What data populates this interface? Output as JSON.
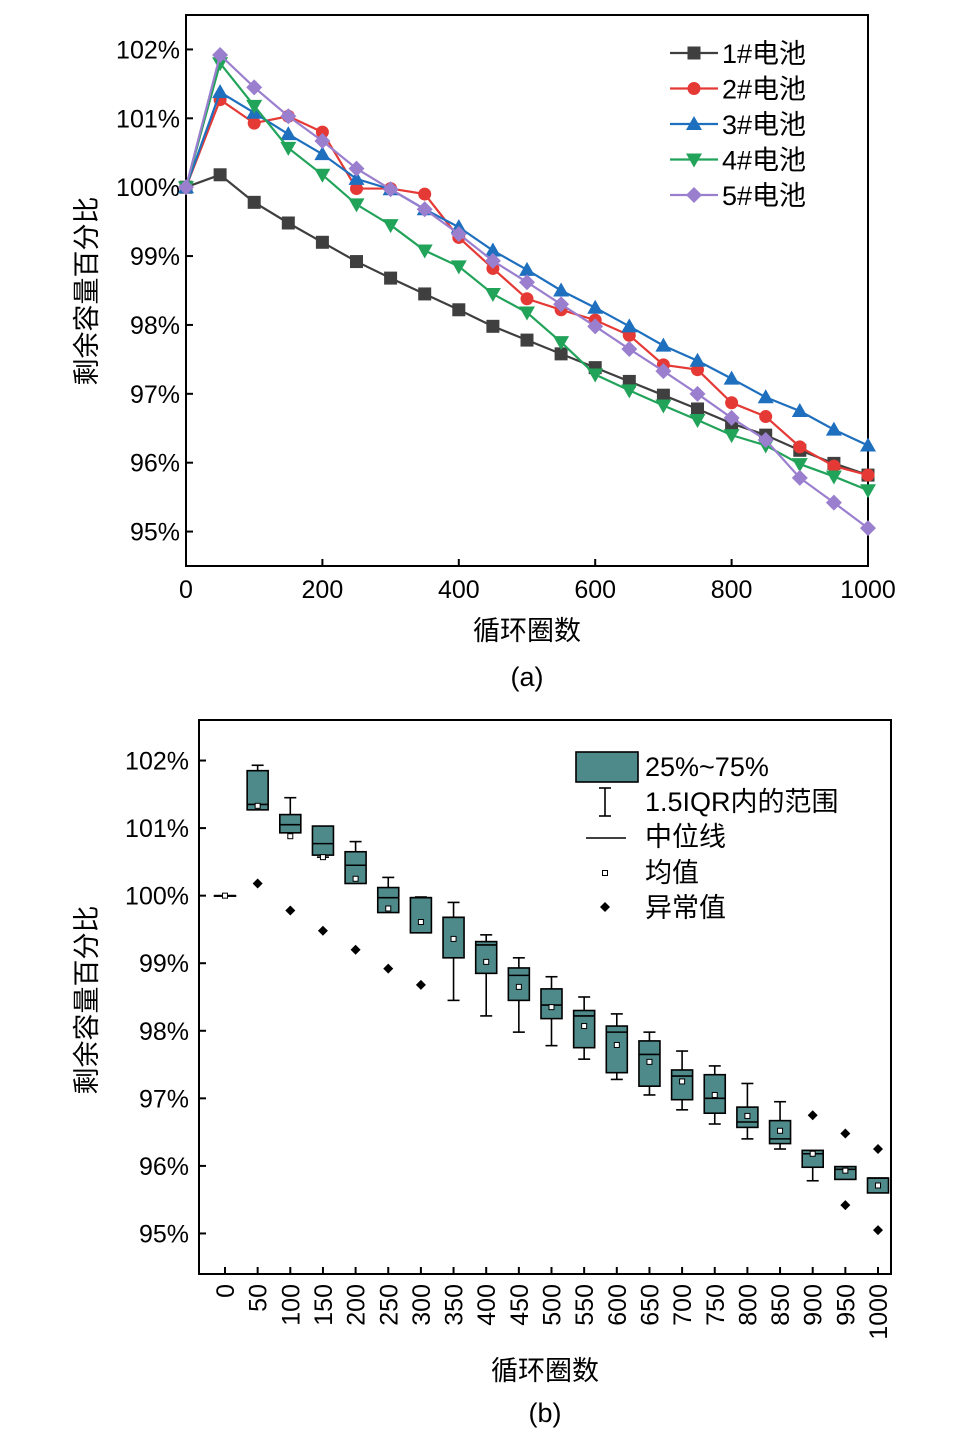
{
  "chart_data": [
    {
      "type": "line",
      "caption": "(a)",
      "xlabel": "循环圈数",
      "ylabel": "剩余容量百分比",
      "xlim": [
        0,
        1000
      ],
      "ylim": [
        94.5,
        102.5
      ],
      "xticks": [
        "0",
        "200",
        "400",
        "600",
        "800",
        "1000"
      ],
      "yticks": [
        "95%",
        "96%",
        "97%",
        "98%",
        "99%",
        "100%",
        "101%",
        "102%"
      ],
      "x": [
        0,
        50,
        100,
        150,
        200,
        250,
        300,
        350,
        400,
        450,
        500,
        550,
        600,
        650,
        700,
        750,
        800,
        850,
        900,
        950,
        1000
      ],
      "legend_position": "top-right",
      "series": [
        {
          "name": "1#电池",
          "color": "#3f3f3f",
          "marker": "square",
          "values": [
            100.0,
            100.18,
            99.78,
            99.48,
            99.2,
            98.92,
            98.68,
            98.45,
            98.22,
            97.98,
            97.78,
            97.58,
            97.38,
            97.18,
            96.98,
            96.78,
            96.57,
            96.4,
            96.18,
            95.99,
            95.82
          ]
        },
        {
          "name": "2#电池",
          "color": "#e53935",
          "marker": "circle",
          "values": [
            100.0,
            101.27,
            100.93,
            101.03,
            100.8,
            99.98,
            99.98,
            99.9,
            99.27,
            98.82,
            98.38,
            98.22,
            98.07,
            97.85,
            97.42,
            97.35,
            96.87,
            96.67,
            96.23,
            95.95,
            95.82
          ]
        },
        {
          "name": "3#电池",
          "color": "#1f6fbf",
          "marker": "triangle-up",
          "values": [
            100.0,
            101.38,
            101.08,
            100.77,
            100.48,
            100.12,
            99.97,
            99.68,
            99.42,
            99.08,
            98.8,
            98.5,
            98.25,
            97.98,
            97.7,
            97.48,
            97.22,
            96.95,
            96.75,
            96.48,
            96.25
          ]
        },
        {
          "name": "4#电池",
          "color": "#22a35a",
          "marker": "triangle-down",
          "values": [
            100.0,
            101.8,
            101.18,
            100.57,
            100.18,
            99.75,
            99.45,
            99.08,
            98.85,
            98.45,
            98.18,
            97.75,
            97.28,
            97.05,
            96.83,
            96.62,
            96.4,
            96.25,
            95.98,
            95.8,
            95.6
          ]
        },
        {
          "name": "5#电池",
          "color": "#9b7fcf",
          "marker": "diamond",
          "values": [
            100.0,
            101.92,
            101.45,
            101.03,
            100.67,
            100.27,
            99.97,
            99.68,
            99.32,
            98.93,
            98.62,
            98.3,
            97.98,
            97.65,
            97.33,
            97.0,
            96.65,
            96.33,
            95.78,
            95.42,
            95.05
          ]
        }
      ]
    },
    {
      "type": "box",
      "caption": "(b)",
      "xlabel": "循环圈数",
      "ylabel": "剩余容量百分比",
      "ylim": [
        94.4,
        102.6
      ],
      "yticks": [
        "95%",
        "96%",
        "97%",
        "98%",
        "99%",
        "100%",
        "101%",
        "102%"
      ],
      "categories": [
        "0",
        "50",
        "100",
        "150",
        "200",
        "250",
        "300",
        "350",
        "400",
        "450",
        "500",
        "550",
        "600",
        "650",
        "700",
        "750",
        "800",
        "850",
        "900",
        "950",
        "1000"
      ],
      "box_color": "#4f8a8b",
      "legend_position": "top-right",
      "legend": [
        "25%~75%",
        "1.5IQR内的范围",
        "中位线",
        "均值",
        "异常值"
      ],
      "boxes": [
        {
          "q1": 100.0,
          "q3": 100.0,
          "median": 100.0,
          "mean": 100.0,
          "whisker_low": 100.0,
          "whisker_high": 100.0,
          "outliers": []
        },
        {
          "q1": 101.27,
          "q3": 101.85,
          "median": 101.35,
          "mean": 101.33,
          "whisker_low": 101.27,
          "whisker_high": 101.93,
          "outliers": [
            100.18
          ]
        },
        {
          "q1": 100.93,
          "q3": 101.2,
          "median": 101.05,
          "mean": 100.88,
          "whisker_low": 100.93,
          "whisker_high": 101.45,
          "outliers": [
            99.78
          ]
        },
        {
          "q1": 100.6,
          "q3": 101.03,
          "median": 100.77,
          "mean": 100.57,
          "whisker_low": 100.57,
          "whisker_high": 101.03,
          "outliers": [
            99.48
          ]
        },
        {
          "q1": 100.18,
          "q3": 100.65,
          "median": 100.45,
          "mean": 100.25,
          "whisker_low": 100.18,
          "whisker_high": 100.8,
          "outliers": [
            99.2
          ]
        },
        {
          "q1": 99.75,
          "q3": 100.12,
          "median": 99.97,
          "mean": 99.81,
          "whisker_low": 99.75,
          "whisker_high": 100.27,
          "outliers": [
            98.92
          ]
        },
        {
          "q1": 99.45,
          "q3": 99.97,
          "median": 99.97,
          "mean": 99.61,
          "whisker_low": 99.45,
          "whisker_high": 99.98,
          "outliers": [
            98.68
          ]
        },
        {
          "q1": 99.08,
          "q3": 99.68,
          "median": 99.68,
          "mean": 99.36,
          "whisker_low": 98.45,
          "whisker_high": 99.9,
          "outliers": []
        },
        {
          "q1": 98.85,
          "q3": 99.32,
          "median": 99.27,
          "mean": 99.02,
          "whisker_low": 98.22,
          "whisker_high": 99.42,
          "outliers": []
        },
        {
          "q1": 98.45,
          "q3": 98.93,
          "median": 98.82,
          "mean": 98.65,
          "whisker_low": 97.98,
          "whisker_high": 99.08,
          "outliers": []
        },
        {
          "q1": 98.18,
          "q3": 98.62,
          "median": 98.38,
          "mean": 98.35,
          "whisker_low": 97.78,
          "whisker_high": 98.8,
          "outliers": []
        },
        {
          "q1": 97.75,
          "q3": 98.3,
          "median": 98.22,
          "mean": 98.07,
          "whisker_low": 97.58,
          "whisker_high": 98.5,
          "outliers": []
        },
        {
          "q1": 97.38,
          "q3": 98.07,
          "median": 97.98,
          "mean": 97.79,
          "whisker_low": 97.28,
          "whisker_high": 98.25,
          "outliers": []
        },
        {
          "q1": 97.18,
          "q3": 97.85,
          "median": 97.65,
          "mean": 97.54,
          "whisker_low": 97.05,
          "whisker_high": 97.98,
          "outliers": []
        },
        {
          "q1": 96.98,
          "q3": 97.42,
          "median": 97.33,
          "mean": 97.25,
          "whisker_low": 96.83,
          "whisker_high": 97.7,
          "outliers": []
        },
        {
          "q1": 96.78,
          "q3": 97.35,
          "median": 97.0,
          "mean": 97.05,
          "whisker_low": 96.62,
          "whisker_high": 97.48,
          "outliers": []
        },
        {
          "q1": 96.57,
          "q3": 96.87,
          "median": 96.65,
          "mean": 96.74,
          "whisker_low": 96.4,
          "whisker_high": 97.22,
          "outliers": []
        },
        {
          "q1": 96.33,
          "q3": 96.67,
          "median": 96.4,
          "mean": 96.52,
          "whisker_low": 96.25,
          "whisker_high": 96.95,
          "outliers": []
        },
        {
          "q1": 95.98,
          "q3": 96.23,
          "median": 96.18,
          "mean": 96.18,
          "whisker_low": 95.78,
          "whisker_high": 96.23,
          "outliers": [
            96.75
          ]
        },
        {
          "q1": 95.8,
          "q3": 95.99,
          "median": 95.95,
          "mean": 95.93,
          "whisker_low": 95.8,
          "whisker_high": 95.99,
          "outliers": [
            96.48,
            95.42
          ]
        },
        {
          "q1": 95.6,
          "q3": 95.82,
          "median": 95.82,
          "mean": 95.71,
          "whisker_low": 95.6,
          "whisker_high": 95.82,
          "outliers": [
            96.25,
            95.05
          ]
        }
      ]
    }
  ]
}
